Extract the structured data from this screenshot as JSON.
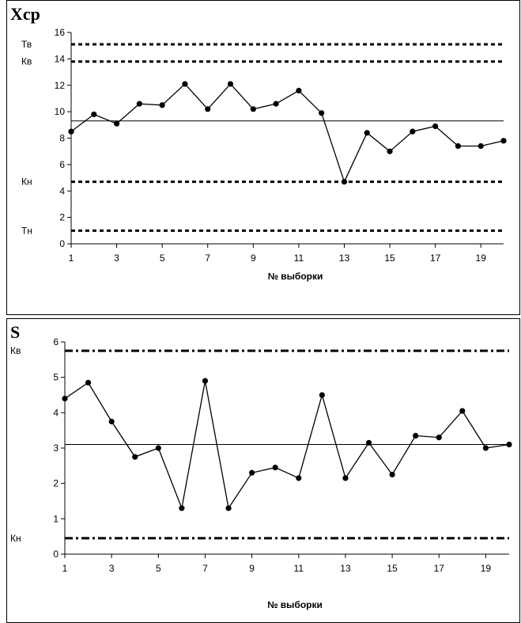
{
  "chart_data": [
    {
      "type": "line",
      "title": "Xср",
      "xlabel": "№ выборки",
      "ylabel": "",
      "ylim": [
        0,
        16
      ],
      "xlim": [
        1,
        20
      ],
      "x_tick_labels": [
        "1",
        "3",
        "5",
        "7",
        "9",
        "11",
        "13",
        "15",
        "17",
        "19"
      ],
      "y_tick_labels": [
        "0",
        "2",
        "4",
        "6",
        "8",
        "10",
        "12",
        "14",
        "16"
      ],
      "x": [
        1,
        2,
        3,
        4,
        5,
        6,
        7,
        8,
        9,
        10,
        11,
        12,
        13,
        14,
        15,
        16,
        17,
        18,
        19,
        20
      ],
      "series": [
        {
          "values": [
            8.5,
            9.8,
            9.1,
            10.6,
            10.5,
            12.1,
            10.2,
            12.1,
            10.2,
            10.6,
            11.6,
            9.9,
            4.7,
            8.4,
            7.0,
            8.5,
            8.9,
            7.4,
            7.4,
            7.8
          ]
        }
      ],
      "center_line": 9.3,
      "control_lines": [
        {
          "label": "Тв",
          "value": 15.1,
          "style": "dotted"
        },
        {
          "label": "Кв",
          "value": 13.8,
          "style": "dotted"
        },
        {
          "label": "Кн",
          "value": 4.7,
          "style": "dotted"
        },
        {
          "label": "Тн",
          "value": 1.0,
          "style": "dotted"
        }
      ],
      "grid": false
    },
    {
      "type": "line",
      "title": "S",
      "xlabel": "№ выборки",
      "ylabel": "",
      "ylim": [
        0,
        6
      ],
      "xlim": [
        1,
        20
      ],
      "x_tick_labels": [
        "1",
        "3",
        "5",
        "7",
        "9",
        "11",
        "13",
        "15",
        "17",
        "19"
      ],
      "y_tick_labels": [
        "0",
        "1",
        "2",
        "3",
        "4",
        "5",
        "6"
      ],
      "x": [
        1,
        2,
        3,
        4,
        5,
        6,
        7,
        8,
        9,
        10,
        11,
        12,
        13,
        14,
        15,
        16,
        17,
        18,
        19,
        20
      ],
      "series": [
        {
          "values": [
            4.4,
            4.85,
            3.75,
            2.75,
            3.0,
            1.3,
            4.9,
            1.3,
            2.3,
            2.45,
            2.15,
            4.5,
            2.15,
            3.15,
            2.25,
            3.35,
            3.3,
            4.05,
            3.0,
            3.1
          ]
        }
      ],
      "center_line": 3.1,
      "control_lines": [
        {
          "label": "Кв",
          "value": 5.75,
          "style": "dash-dot"
        },
        {
          "label": "Кн",
          "value": 0.45,
          "style": "dash-dot"
        }
      ],
      "grid": false
    }
  ]
}
